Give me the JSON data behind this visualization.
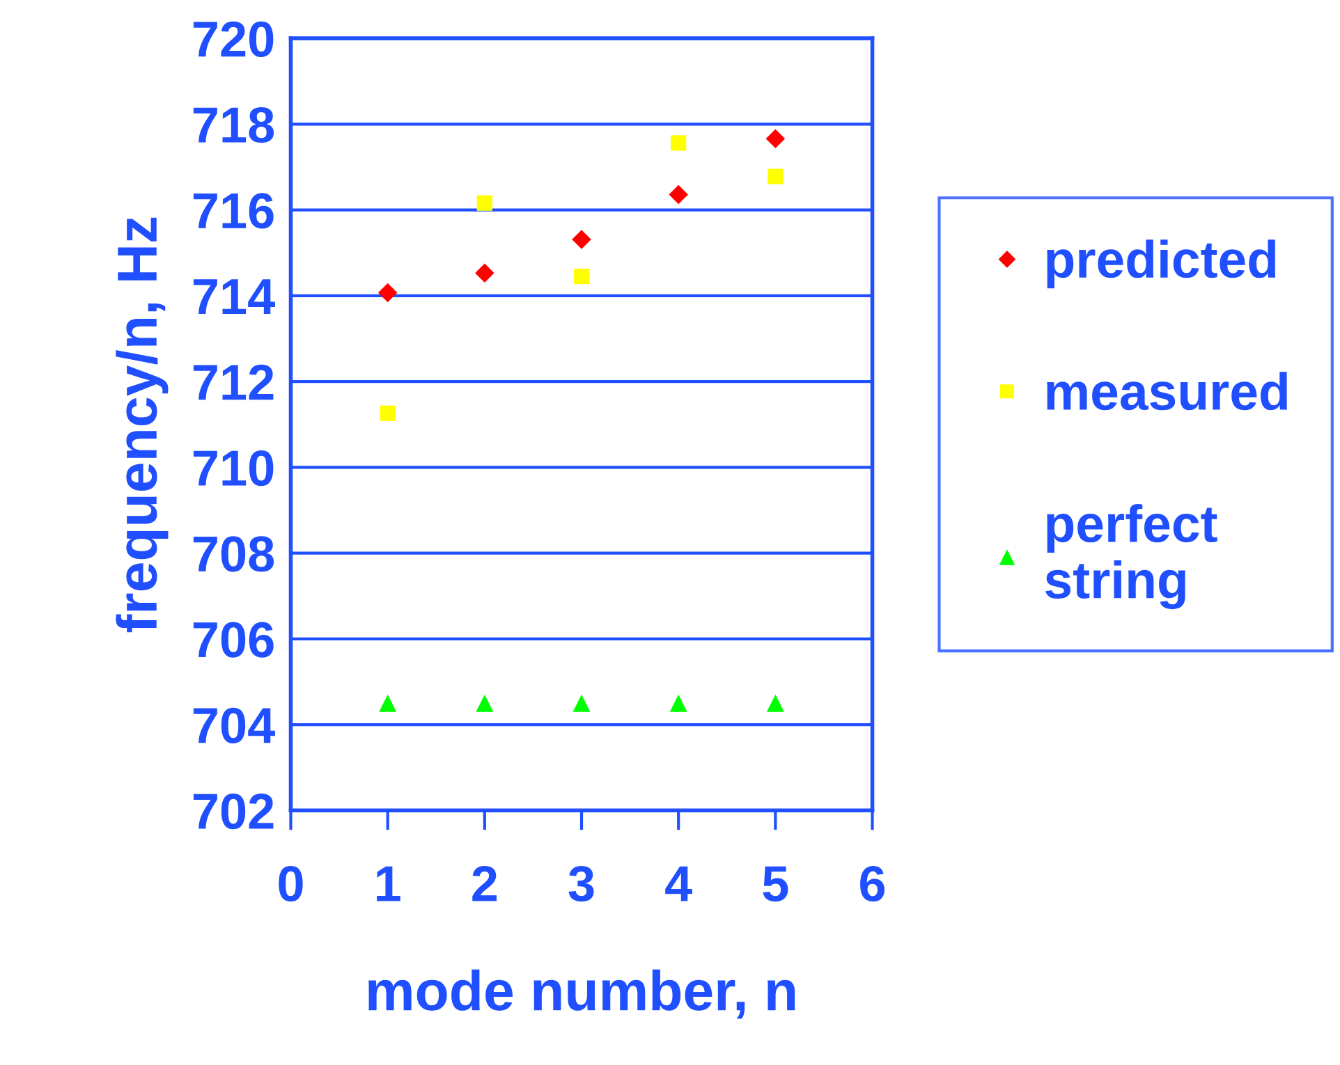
{
  "chart_data": {
    "type": "scatter",
    "xlabel": "mode number, n",
    "ylabel": "frequency/n, Hz",
    "x": [
      1,
      2,
      3,
      4,
      5
    ],
    "series": [
      {
        "name": "predicted",
        "color": "#ff0000",
        "marker": "diamond",
        "values": [
          714.07,
          714.53,
          715.31,
          716.36,
          717.66
        ]
      },
      {
        "name": "measured",
        "color": "#ffff00",
        "marker": "square",
        "values": [
          711.26,
          716.16,
          714.45,
          717.56,
          716.78
        ]
      },
      {
        "name": "perfect\nstring",
        "color": "#00ff00",
        "marker": "triangle",
        "values": [
          704.5,
          704.5,
          704.5,
          704.5,
          704.5
        ]
      }
    ],
    "xlim": [
      0,
      6
    ],
    "xticks": [
      0,
      1,
      2,
      3,
      4,
      5,
      6
    ],
    "ylim": [
      702,
      720
    ],
    "yticks": [
      702,
      704,
      706,
      708,
      710,
      712,
      714,
      716,
      718,
      720
    ],
    "grid": "y",
    "legend": "right"
  }
}
